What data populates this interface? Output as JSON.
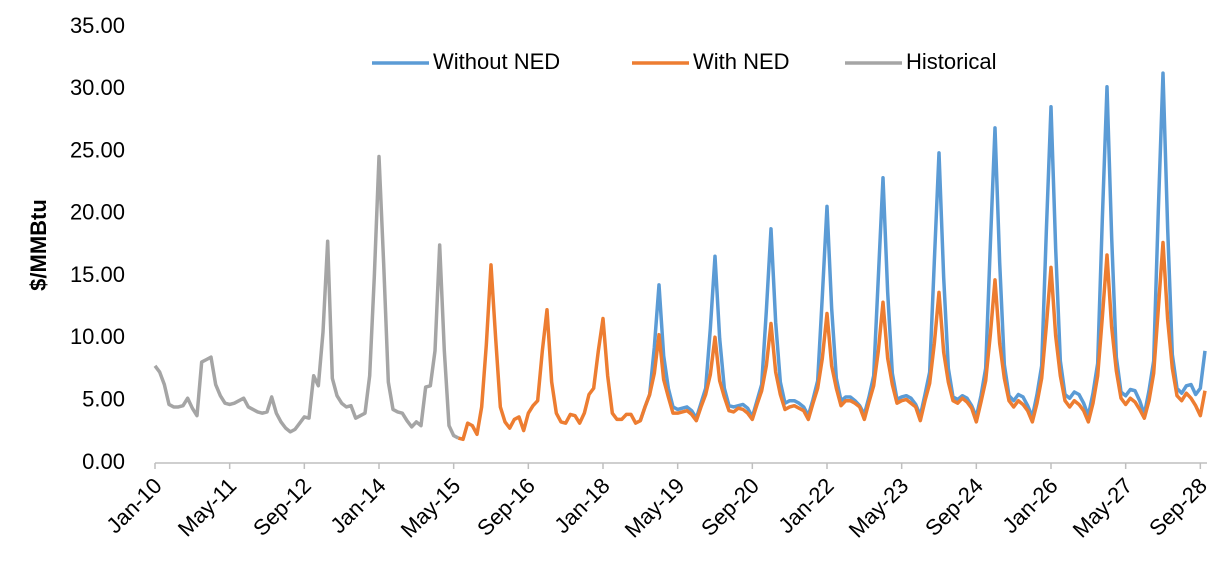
{
  "chart_data": {
    "type": "line",
    "ylabel": "$/MMBtu",
    "ylim": [
      0,
      35
    ],
    "yticks": [
      {
        "value": 0,
        "label": "0.00"
      },
      {
        "value": 5,
        "label": "5.00"
      },
      {
        "value": 10,
        "label": "10.00"
      },
      {
        "value": 15,
        "label": "15.00"
      },
      {
        "value": 20,
        "label": "20.00"
      },
      {
        "value": 25,
        "label": "25.00"
      },
      {
        "value": 30,
        "label": "30.00"
      },
      {
        "value": 35,
        "label": "35.00"
      }
    ],
    "grid": false,
    "legend": "top",
    "categories": [
      "Jan-10",
      null,
      null,
      null,
      null,
      null,
      null,
      null,
      null,
      null,
      null,
      null,
      null,
      null,
      null,
      null,
      "May-11",
      null,
      null,
      null,
      null,
      null,
      null,
      null,
      null,
      null,
      null,
      null,
      null,
      null,
      null,
      null,
      "Sep-12",
      null,
      null,
      null,
      null,
      null,
      null,
      null,
      null,
      null,
      null,
      null,
      null,
      null,
      null,
      null,
      "Jan-14",
      null,
      null,
      null,
      null,
      null,
      null,
      null,
      null,
      null,
      null,
      null,
      null,
      null,
      null,
      null,
      "May-15",
      null,
      null,
      null,
      null,
      null,
      null,
      null,
      null,
      null,
      null,
      null,
      null,
      null,
      null,
      null,
      "Sep-16",
      null,
      null,
      null,
      null,
      null,
      null,
      null,
      null,
      null,
      null,
      null,
      null,
      null,
      null,
      null,
      "Jan-18",
      null,
      null,
      null,
      null,
      null,
      null,
      null,
      null,
      null,
      null,
      null,
      null,
      null,
      null,
      null,
      "May-19",
      null,
      null,
      null,
      null,
      null,
      null,
      null,
      null,
      null,
      null,
      null,
      null,
      null,
      null,
      null,
      "Sep-20",
      null,
      null,
      null,
      null,
      null,
      null,
      null,
      null,
      null,
      null,
      null,
      null,
      null,
      null,
      null,
      "Jan-22",
      null,
      null,
      null,
      null,
      null,
      null,
      null,
      null,
      null,
      null,
      null,
      null,
      null,
      null,
      null,
      "May-23",
      null,
      null,
      null,
      null,
      null,
      null,
      null,
      null,
      null,
      null,
      null,
      null,
      null,
      null,
      null,
      "Sep-24",
      null,
      null,
      null,
      null,
      null,
      null,
      null,
      null,
      null,
      null,
      null,
      null,
      null,
      null,
      null,
      "Jan-26",
      null,
      null,
      null,
      null,
      null,
      null,
      null,
      null,
      null,
      null,
      null,
      null,
      null,
      null,
      null,
      "May-27",
      null,
      null,
      null,
      null,
      null,
      null,
      null,
      null,
      null,
      null,
      null,
      null,
      null,
      null,
      null,
      "Sep-28",
      null
    ],
    "series": [
      {
        "name": "Without NED",
        "color": "#5b9bd5",
        "values": [
          null,
          null,
          null,
          null,
          null,
          null,
          null,
          null,
          null,
          null,
          null,
          null,
          null,
          null,
          null,
          null,
          null,
          null,
          null,
          null,
          null,
          null,
          null,
          null,
          null,
          null,
          null,
          null,
          null,
          null,
          null,
          null,
          null,
          null,
          null,
          null,
          null,
          null,
          null,
          null,
          null,
          null,
          null,
          null,
          null,
          null,
          null,
          null,
          null,
          null,
          null,
          null,
          null,
          null,
          null,
          null,
          null,
          null,
          null,
          null,
          null,
          null,
          null,
          null,
          null,
          null,
          null,
          null,
          null,
          null,
          null,
          null,
          null,
          null,
          null,
          null,
          null,
          null,
          null,
          null,
          null,
          null,
          null,
          null,
          null,
          null,
          null,
          null,
          null,
          null,
          null,
          null,
          null,
          null,
          null,
          null,
          null,
          null,
          null,
          null,
          null,
          null,
          null,
          null,
          3.4,
          4.5,
          5.5,
          9.3,
          14.3,
          8.6,
          6.0,
          4.5,
          4.3,
          4.4,
          4.5,
          4.2,
          3.6,
          4.8,
          6.0,
          10.8,
          16.6,
          10.0,
          6.0,
          4.6,
          4.5,
          4.6,
          4.7,
          4.4,
          3.7,
          5.0,
          6.3,
          12.2,
          18.8,
          11.3,
          6.5,
          4.8,
          5.0,
          5.0,
          4.8,
          4.5,
          3.8,
          5.1,
          6.6,
          13.4,
          20.6,
          12.4,
          6.8,
          5.0,
          5.3,
          5.3,
          5.0,
          4.6,
          3.9,
          5.3,
          7.0,
          14.9,
          22.9,
          13.7,
          7.2,
          5.1,
          5.3,
          5.4,
          5.2,
          4.7,
          3.8,
          5.5,
          7.3,
          16.2,
          24.9,
          14.9,
          7.6,
          5.3,
          5.1,
          5.4,
          5.2,
          4.6,
          3.7,
          5.4,
          7.6,
          17.5,
          26.9,
          16.1,
          7.9,
          5.4,
          5.0,
          5.5,
          5.3,
          4.6,
          3.7,
          5.5,
          7.8,
          18.6,
          28.6,
          17.2,
          8.2,
          5.5,
          5.2,
          5.7,
          5.5,
          4.8,
          3.8,
          5.6,
          8.0,
          19.6,
          30.2,
          18.1,
          8.5,
          5.7,
          5.4,
          5.9,
          5.8,
          5.0,
          3.9,
          5.8,
          8.2,
          20.3,
          31.3,
          18.8,
          8.7,
          6.0,
          5.6,
          6.2,
          6.3,
          5.5,
          6.0,
          9.0
        ]
      },
      {
        "name": "With NED",
        "color": "#ed7d31",
        "values": [
          null,
          null,
          null,
          null,
          null,
          null,
          null,
          null,
          null,
          null,
          null,
          null,
          null,
          null,
          null,
          null,
          null,
          null,
          null,
          null,
          null,
          null,
          null,
          null,
          null,
          null,
          null,
          null,
          null,
          null,
          null,
          null,
          null,
          null,
          null,
          null,
          null,
          null,
          null,
          null,
          null,
          null,
          null,
          null,
          null,
          null,
          null,
          null,
          null,
          null,
          null,
          null,
          null,
          null,
          null,
          null,
          null,
          null,
          null,
          null,
          null,
          null,
          null,
          null,
          null,
          2.0,
          1.9,
          3.2,
          3.0,
          2.3,
          4.5,
          9.5,
          15.9,
          10.0,
          4.5,
          3.3,
          2.8,
          3.5,
          3.7,
          2.6,
          4.0,
          4.6,
          5.0,
          9.0,
          12.3,
          6.5,
          4.0,
          3.3,
          3.2,
          3.9,
          3.8,
          3.2,
          4.0,
          5.5,
          6.0,
          9.0,
          11.6,
          7.0,
          4.0,
          3.5,
          3.5,
          3.9,
          3.9,
          3.2,
          3.4,
          4.5,
          5.5,
          7.2,
          10.3,
          6.7,
          5.3,
          4.0,
          4.0,
          4.1,
          4.2,
          3.9,
          3.4,
          4.5,
          5.5,
          7.1,
          10.1,
          6.6,
          5.3,
          4.2,
          4.1,
          4.4,
          4.3,
          4.0,
          3.5,
          4.7,
          5.8,
          7.8,
          11.2,
          7.3,
          5.5,
          4.3,
          4.5,
          4.6,
          4.4,
          4.2,
          3.5,
          4.8,
          6.0,
          8.4,
          12.0,
          7.8,
          6.0,
          4.6,
          5.0,
          5.0,
          4.8,
          4.5,
          3.5,
          4.9,
          6.2,
          9.0,
          12.9,
          8.4,
          6.3,
          4.8,
          5.0,
          5.1,
          4.8,
          4.5,
          3.4,
          5.0,
          6.4,
          9.6,
          13.7,
          8.9,
          6.5,
          5.0,
          4.8,
          5.2,
          4.9,
          4.4,
          3.3,
          4.9,
          6.6,
          10.3,
          14.7,
          9.6,
          6.8,
          5.0,
          4.5,
          5.0,
          4.7,
          4.2,
          3.3,
          4.8,
          6.8,
          11.0,
          15.7,
          10.2,
          7.0,
          5.0,
          4.5,
          5.0,
          4.7,
          4.2,
          3.3,
          4.8,
          7.0,
          11.7,
          16.7,
          10.9,
          7.4,
          5.2,
          4.7,
          5.2,
          4.9,
          4.3,
          3.6,
          5.0,
          7.2,
          12.4,
          17.7,
          11.5,
          7.6,
          5.4,
          5.0,
          5.6,
          5.2,
          4.6,
          3.8,
          5.8
        ]
      },
      {
        "name": "Historical",
        "color": "#a5a5a5",
        "values": [
          7.8,
          7.3,
          6.3,
          4.7,
          4.5,
          4.5,
          4.6,
          5.2,
          4.4,
          3.8,
          8.1,
          8.3,
          8.5,
          6.3,
          5.4,
          4.8,
          4.7,
          4.8,
          5.0,
          5.2,
          4.5,
          4.3,
          4.1,
          4.0,
          4.1,
          5.3,
          4.0,
          3.3,
          2.8,
          2.5,
          2.7,
          3.2,
          3.7,
          3.6,
          7.0,
          6.2,
          10.5,
          17.8,
          6.8,
          5.4,
          4.8,
          4.5,
          4.6,
          3.6,
          3.8,
          4.0,
          7.0,
          15.0,
          24.6,
          16.0,
          6.5,
          4.3,
          4.1,
          4.0,
          3.4,
          2.9,
          3.3,
          3.0,
          6.1,
          6.2,
          9.0,
          17.5,
          9.0,
          3.0,
          2.2,
          2.0,
          null,
          null,
          null,
          null,
          null,
          null,
          null,
          null,
          null,
          null,
          null,
          null,
          null,
          null,
          null,
          null,
          null,
          null,
          null,
          null,
          null,
          null,
          null,
          null,
          null,
          null,
          null,
          null,
          null,
          null,
          null,
          null,
          null,
          null,
          null,
          null,
          null,
          null,
          null,
          null,
          null,
          null,
          null,
          null,
          null,
          null,
          null,
          null,
          null,
          null,
          null,
          null,
          null,
          null,
          null,
          null,
          null,
          null,
          null,
          null,
          null,
          null,
          null,
          null,
          null,
          null,
          null,
          null,
          null,
          null,
          null,
          null,
          null,
          null,
          null,
          null,
          null,
          null,
          null,
          null,
          null,
          null,
          null,
          null,
          null,
          null,
          null,
          null,
          null,
          null,
          null,
          null,
          null,
          null,
          null,
          null,
          null,
          null,
          null,
          null,
          null,
          null,
          null,
          null,
          null,
          null,
          null,
          null,
          null,
          null,
          null,
          null,
          null,
          null,
          null,
          null,
          null,
          null,
          null,
          null,
          null,
          null,
          null,
          null,
          null,
          null,
          null,
          null,
          null,
          null,
          null,
          null,
          null,
          null,
          null,
          null,
          null,
          null,
          null,
          null,
          null,
          null,
          null,
          null,
          null,
          null,
          null,
          null,
          null,
          null,
          null,
          null,
          null,
          null,
          null,
          null,
          null,
          null,
          null,
          null
        ]
      }
    ]
  }
}
